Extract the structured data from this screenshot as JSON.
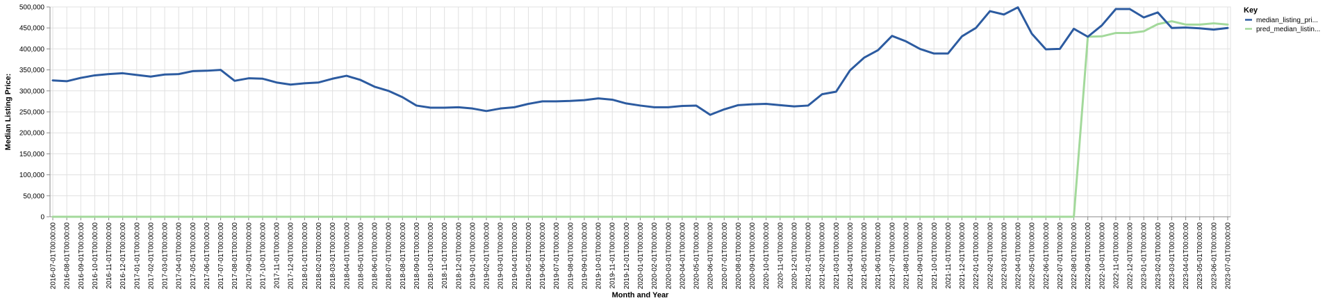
{
  "chart_data": {
    "type": "line",
    "title": "",
    "xlabel": "Month and Year",
    "ylabel": "Median Listing Price:",
    "ylim": [
      0,
      500000
    ],
    "yticks": [
      0,
      50000,
      100000,
      150000,
      200000,
      250000,
      300000,
      350000,
      400000,
      450000,
      500000
    ],
    "ytick_labels": [
      "0",
      "50,000",
      "100,000",
      "150,000",
      "200,000",
      "250,000",
      "300,000",
      "350,000",
      "400,000",
      "450,000",
      "500,000"
    ],
    "grid": true,
    "legend": {
      "title": "Key",
      "position": "right"
    },
    "colors": {
      "median_listing_price": "#2c5ba0",
      "pred_median_listing_price": "#a3d99b",
      "grid": "#e0e0e0",
      "axis": "#888888"
    },
    "x": [
      "2016-07-01T00:00:00",
      "2016-08-01T00:00:00",
      "2016-09-01T00:00:00",
      "2016-10-01T00:00:00",
      "2016-11-01T00:00:00",
      "2016-12-01T00:00:00",
      "2017-01-01T00:00:00",
      "2017-02-01T00:00:00",
      "2017-03-01T00:00:00",
      "2017-04-01T00:00:00",
      "2017-05-01T00:00:00",
      "2017-06-01T00:00:00",
      "2017-07-01T00:00:00",
      "2017-08-01T00:00:00",
      "2017-09-01T00:00:00",
      "2017-10-01T00:00:00",
      "2017-11-01T00:00:00",
      "2017-12-01T00:00:00",
      "2018-01-01T00:00:00",
      "2018-02-01T00:00:00",
      "2018-03-01T00:00:00",
      "2018-04-01T00:00:00",
      "2018-05-01T00:00:00",
      "2018-06-01T00:00:00",
      "2018-07-01T00:00:00",
      "2018-08-01T00:00:00",
      "2018-09-01T00:00:00",
      "2018-10-01T00:00:00",
      "2018-11-01T00:00:00",
      "2018-12-01T00:00:00",
      "2019-01-01T00:00:00",
      "2019-02-01T00:00:00",
      "2019-03-01T00:00:00",
      "2019-04-01T00:00:00",
      "2019-05-01T00:00:00",
      "2019-06-01T00:00:00",
      "2019-07-01T00:00:00",
      "2019-08-01T00:00:00",
      "2019-09-01T00:00:00",
      "2019-10-01T00:00:00",
      "2019-11-01T00:00:00",
      "2019-12-01T00:00:00",
      "2020-01-01T00:00:00",
      "2020-02-01T00:00:00",
      "2020-03-01T00:00:00",
      "2020-04-01T00:00:00",
      "2020-05-01T00:00:00",
      "2020-06-01T00:00:00",
      "2020-07-01T00:00:00",
      "2020-08-01T00:00:00",
      "2020-09-01T00:00:00",
      "2020-10-01T00:00:00",
      "2020-11-01T00:00:00",
      "2020-12-01T00:00:00",
      "2021-01-01T00:00:00",
      "2021-02-01T00:00:00",
      "2021-03-01T00:00:00",
      "2021-04-01T00:00:00",
      "2021-05-01T00:00:00",
      "2021-06-01T00:00:00",
      "2021-07-01T00:00:00",
      "2021-08-01T00:00:00",
      "2021-09-01T00:00:00",
      "2021-10-01T00:00:00",
      "2021-11-01T00:00:00",
      "2021-12-01T00:00:00",
      "2022-01-01T00:00:00",
      "2022-02-01T00:00:00",
      "2022-03-01T00:00:00",
      "2022-04-01T00:00:00",
      "2022-05-01T00:00:00",
      "2022-06-01T00:00:00",
      "2022-07-01T00:00:00",
      "2022-08-01T00:00:00",
      "2022-09-01T00:00:00",
      "2022-10-01T00:00:00",
      "2022-11-01T00:00:00",
      "2022-12-01T00:00:00",
      "2023-01-01T00:00:00",
      "2023-02-01T00:00:00",
      "2023-03-01T00:00:00",
      "2023-04-01T00:00:00",
      "2023-05-01T00:00:00",
      "2023-06-01T00:00:00",
      "2023-07-01T00:00:00"
    ],
    "xtick_labels": [
      "2016-07-01T00:00:00",
      "2016-08-01T00:00:00",
      "2016-09-01T00:00:00",
      "2016-10-01T00:00:00",
      "2016-11-01T00:00:00",
      "2016-12-01T00:00:00",
      "2017-01-01T00:00:00",
      "2017-02-01T00:00:00",
      "2017-03-01T00:00:00",
      "2017-04-01T00:00:00",
      "2017-05-01T00:00:00",
      "2017-06-01T00:00:00",
      "2017-07-01T00:00:00",
      "2017-08-01T00:00:00",
      "2017-09-01T00:00:00",
      "2017-10-01T00:00:00",
      "2017-11-01T00:00:00",
      "2017-12-01T00:00:00",
      "2018-01-01T00:00:00",
      "2018-02-01T00:00:00",
      "2018-03-01T00:00:00",
      "2018-04-01T00:00:00",
      "2018-05-01T00:00:00",
      "2018-06-01T00:00:00",
      "2018-07-01T00:00:00",
      "2018-08-01T00:00:00",
      "2018-09-01T00:00:00",
      "2018-10-01T00:00:00",
      "2018-11-01T00:00:00",
      "2018-12-01T00:00:00",
      "2019-01-01T00:00:00",
      "2019-02-01T00:00:00",
      "2019-03-01T00:00:00",
      "2019-04-01T00:00:00",
      "2019-05-01T00:00:00",
      "2019-06-01T00:00:00",
      "2019-07-01T00:00:00",
      "2019-08-01T00:00:00",
      "2019-09-01T00:00:00",
      "2019-10-01T00:00:00",
      "2019-11-01T00:00:00",
      "2019-12-01T00:00:00",
      "2020-01-01T00:00:00",
      "2020-02-01T00:00:00",
      "2020-03-01T00:00:00",
      "2020-04-01T00:00:00",
      "2020-05-01T00:00:00",
      "2020-06-01T00:00:00",
      "2020-07-01T00:00:00",
      "2020-08-01T00:00:00",
      "2020-09-01T00:00:00",
      "2020-10-01T00:00:00",
      "2020-11-01T00:00:00",
      "2020-12-01T00:00:00",
      "2021-01-01T00:00:00",
      "2021-02-01T00:00:00",
      "2021-03-01T00:00:00",
      "2021-04-01T00:00:00",
      "2021-05-01T00:00:00",
      "2021-06-01T00:00:00",
      "2021-07-01T00:00:00",
      "2021-08-01T00:00:00",
      "2021-09-01T00:00:00",
      "2021-10-01T00:00:00",
      "2021-11-01T00:00:00",
      "2021-12-01T00:00:00",
      "2022-01-01T00:00:00",
      "2022-02-01T00:00:00",
      "2022-03-01T00:00:00",
      "2022-04-01T00:00:00",
      "2022-05-01T00:00:00",
      "2022-06-01T00:00:00",
      "2022-07-01T00:00:00",
      "2022-08-01T00:00:00",
      "2022-09-01T00:00:00",
      "2022-10-01T00:00:00",
      "2022-11-01T00:00:00",
      "2022-12-01T00:00:00",
      "2023-01-01T00:00:00",
      "2023-02-01T00:00:00",
      "2023-03-01T00:00:00",
      "2023-04-01T00:00:00",
      "2023-05-01T00:00:00",
      "2023-06-01T00:00:00",
      "2023-07-01T00:00:00"
    ],
    "series": [
      {
        "name": "median_listing_pri...",
        "color": "#2c5ba0",
        "values": [
          325000,
          323000,
          331000,
          337000,
          340000,
          342000,
          338000,
          334000,
          339000,
          340000,
          347000,
          348000,
          350000,
          324000,
          330000,
          329000,
          320000,
          315000,
          318000,
          320000,
          329000,
          336000,
          326000,
          310000,
          300000,
          285000,
          265000,
          260000,
          260000,
          261000,
          258000,
          252000,
          258000,
          261000,
          269000,
          275000,
          275000,
          276000,
          278000,
          282000,
          279000,
          270000,
          265000,
          261000,
          261000,
          264000,
          265000,
          243000,
          256000,
          266000,
          268000,
          269000,
          266000,
          263000,
          265000,
          292000,
          298000,
          349000,
          379000,
          397000,
          431000,
          418000,
          400000,
          389000,
          389000,
          430000,
          450000,
          490000,
          482000,
          499000,
          436000,
          399000,
          400000,
          448000,
          429000,
          456000,
          495000,
          495000,
          475000,
          487000,
          450000,
          451000,
          449000,
          446000,
          450000
        ]
      },
      {
        "name": "pred_median_listin...",
        "color": "#a3d99b",
        "values": [
          0,
          0,
          0,
          0,
          0,
          0,
          0,
          0,
          0,
          0,
          0,
          0,
          0,
          0,
          0,
          0,
          0,
          0,
          0,
          0,
          0,
          0,
          0,
          0,
          0,
          0,
          0,
          0,
          0,
          0,
          0,
          0,
          0,
          0,
          0,
          0,
          0,
          0,
          0,
          0,
          0,
          0,
          0,
          0,
          0,
          0,
          0,
          0,
          0,
          0,
          0,
          0,
          0,
          0,
          0,
          0,
          0,
          0,
          0,
          0,
          0,
          0,
          0,
          0,
          0,
          0,
          0,
          0,
          0,
          0,
          0,
          0,
          0,
          0,
          429000,
          430000,
          438000,
          438000,
          442000,
          459000,
          466000,
          458000,
          458000,
          461000,
          458000
        ]
      }
    ]
  }
}
